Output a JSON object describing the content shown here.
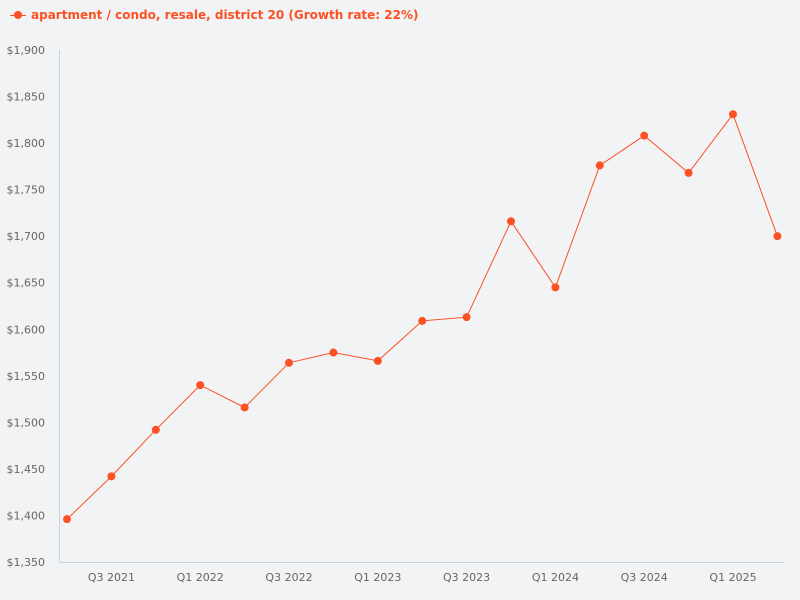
{
  "legend": {
    "label": "apartment / condo, resale, district 20 (Growth rate: 22%)",
    "color": "#fc5124"
  },
  "chart_data": {
    "type": "line",
    "title": "",
    "xlabel": "",
    "ylabel": "",
    "ylim": [
      1350,
      1900
    ],
    "grid": false,
    "legend_position": "top-left",
    "y_ticks": [
      "$1,350",
      "$1,400",
      "$1,450",
      "$1,500",
      "$1,550",
      "$1,600",
      "$1,650",
      "$1,700",
      "$1,750",
      "$1,800",
      "$1,850",
      "$1,900"
    ],
    "x_tick_labels": [
      {
        "label": "Q3 2021",
        "index": 1
      },
      {
        "label": "Q1 2022",
        "index": 3
      },
      {
        "label": "Q3 2022",
        "index": 5
      },
      {
        "label": "Q1 2023",
        "index": 7
      },
      {
        "label": "Q3 2023",
        "index": 9
      },
      {
        "label": "Q1 2024",
        "index": 11
      },
      {
        "label": "Q3 2024",
        "index": 13
      },
      {
        "label": "Q1 2025",
        "index": 15
      }
    ],
    "categories": [
      "Q2 2021",
      "Q3 2021",
      "Q4 2021",
      "Q1 2022",
      "Q2 2022",
      "Q3 2022",
      "Q4 2022",
      "Q1 2023",
      "Q2 2023",
      "Q3 2023",
      "Q4 2023",
      "Q1 2024",
      "Q2 2024",
      "Q3 2024",
      "Q4 2024",
      "Q1 2025",
      "Q2 2025"
    ],
    "series": [
      {
        "name": "apartment / condo, resale, district 20 (Growth rate: 22%)",
        "color": "#fc5124",
        "values": [
          1396,
          1442,
          1492,
          1540,
          1516,
          1564,
          1575,
          1566,
          1609,
          1613,
          1716,
          1645,
          1776,
          1808,
          1768,
          1831,
          1700
        ]
      }
    ]
  }
}
